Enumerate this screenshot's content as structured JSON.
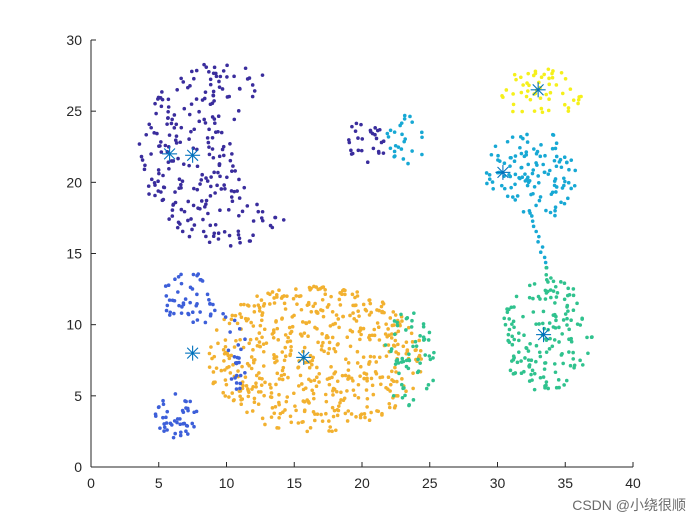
{
  "chart_data": {
    "type": "scatter",
    "title": "",
    "xlabel": "",
    "ylabel": "",
    "xlim": [
      0,
      40
    ],
    "ylim": [
      0,
      30
    ],
    "x_ticks": [
      0,
      5,
      10,
      15,
      20,
      25,
      30,
      35,
      40
    ],
    "y_ticks": [
      0,
      5,
      10,
      15,
      20,
      25,
      30
    ],
    "grid": false,
    "clusters": [
      {
        "name": "cluster-1",
        "color": "#3a2d9d",
        "shape": "crescent",
        "center": [
          10.0,
          22.0
        ],
        "r_outer": 6.5,
        "r_inner_cut": 4.8,
        "cut_offset": [
          5.3,
          0.3
        ],
        "count": 250
      },
      {
        "name": "cluster-2",
        "color": "#3a2d9d",
        "shape": "disk",
        "center": [
          20.3,
          22.8
        ],
        "rx": 1.6,
        "ry": 1.5,
        "count": 28
      },
      {
        "name": "cluster-3",
        "color": "#17a8d4",
        "shape": "disk",
        "center": [
          23.3,
          23.0
        ],
        "rx": 1.5,
        "ry": 1.7,
        "count": 26
      },
      {
        "name": "cluster-4",
        "color": "#f5f01b",
        "shape": "disk",
        "center": [
          33.2,
          26.2
        ],
        "rx": 3.0,
        "ry": 1.8,
        "count": 55
      },
      {
        "name": "cluster-5",
        "color": "#17a8d4",
        "shape": "disk",
        "center": [
          32.6,
          20.5
        ],
        "rx": 3.6,
        "ry": 3.2,
        "count": 120
      },
      {
        "name": "cluster-6",
        "color": "#30c28e",
        "shape": "disk",
        "center": [
          33.6,
          9.3
        ],
        "rx": 3.4,
        "ry": 4.0,
        "count": 160
      },
      {
        "name": "cluster-7",
        "color": "#f2b130",
        "shape": "disk",
        "center": [
          16.5,
          7.6
        ],
        "rx": 8.0,
        "ry": 5.2,
        "count": 560
      },
      {
        "name": "cluster-8",
        "color": "#30c28e",
        "shape": "disk",
        "center": [
          23.5,
          7.2
        ],
        "rx": 1.9,
        "ry": 3.8,
        "count": 60
      },
      {
        "name": "cluster-9",
        "color": "#3d5fd9",
        "shape": "disk",
        "center": [
          7.2,
          11.7
        ],
        "rx": 2.0,
        "ry": 2.0,
        "count": 48
      },
      {
        "name": "cluster-10",
        "color": "#3d5fd9",
        "shape": "disk",
        "center": [
          10.8,
          7.8
        ],
        "rx": 0.8,
        "ry": 2.6,
        "count": 22
      },
      {
        "name": "cluster-11",
        "color": "#3d5fd9",
        "shape": "disk",
        "center": [
          6.3,
          3.6
        ],
        "rx": 1.6,
        "ry": 1.6,
        "count": 45
      }
    ],
    "bridges": [
      {
        "name": "bridge-1",
        "color": "#17a8d4",
        "from": [
          32.5,
          18.0
        ],
        "to": [
          33.6,
          14.0
        ],
        "count": 12
      },
      {
        "name": "bridge-2",
        "color": "#30c28e",
        "from": [
          33.6,
          14.0
        ],
        "to": [
          33.7,
          13.0
        ],
        "count": 3
      },
      {
        "name": "bridge-3",
        "color": "#3d5fd9",
        "from": [
          9.2,
          11.0
        ],
        "to": [
          10.5,
          10.3
        ],
        "count": 4
      }
    ],
    "centroids": [
      [
        5.8,
        22.0
      ],
      [
        7.5,
        21.9
      ],
      [
        15.7,
        7.7
      ],
      [
        30.4,
        20.7
      ],
      [
        33.0,
        26.5
      ],
      [
        33.4,
        9.3
      ],
      [
        7.5,
        8.0
      ]
    ],
    "centroid_marker": "asterisk",
    "centroid_color": "#0072bd"
  },
  "watermark": "CSDN @小绕很顺"
}
